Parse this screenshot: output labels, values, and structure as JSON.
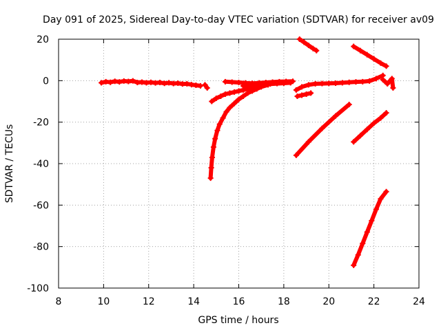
{
  "chart_data": {
    "type": "scatter",
    "title": "Day 091 of 2025, Sidereal Day-to-day VTEC variation (SDTVAR) for receiver av09",
    "xlabel": "GPS time / hours",
    "ylabel": "SDTVAR / TECUs",
    "xlim": [
      8,
      24
    ],
    "ylim": [
      -100,
      20
    ],
    "xticks": [
      "8",
      "10",
      "12",
      "14",
      "16",
      "18",
      "20",
      "22",
      "24"
    ],
    "yticks": [
      "20",
      "0",
      "-20",
      "-40",
      "-60",
      "-80",
      "-100"
    ],
    "grid": true,
    "marker": "plus",
    "color": "#ff0000",
    "series": [
      {
        "x": [
          9.9,
          10.1,
          10.3,
          10.5,
          10.7,
          10.9,
          11.1,
          11.3,
          11.5,
          11.7,
          11.9,
          12.1,
          12.3,
          12.5,
          12.7,
          12.9,
          13.1,
          13.3,
          13.5,
          13.7,
          13.9,
          14.1,
          14.3
        ],
        "y": [
          -1.0,
          -0.5,
          -0.8,
          -0.3,
          -0.6,
          -0.2,
          -0.4,
          -0.1,
          -0.9,
          -0.7,
          -1.0,
          -0.8,
          -1.1,
          -0.9,
          -1.3,
          -1.0,
          -1.4,
          -1.2,
          -1.6,
          -1.5,
          -1.9,
          -2.2,
          -2.5
        ]
      },
      {
        "x": [
          14.5,
          14.6
        ],
        "y": [
          -2.0,
          -3.5
        ]
      },
      {
        "x": [
          14.75,
          14.78,
          14.82,
          14.88,
          14.95,
          15.05,
          15.15,
          15.3,
          15.45,
          15.6,
          15.8,
          16.0,
          16.2,
          16.4,
          16.6,
          16.8,
          17.0,
          17.3
        ],
        "y": [
          -47,
          -42,
          -37,
          -32,
          -28,
          -24,
          -21,
          -18,
          -15,
          -13,
          -11,
          -9,
          -7.5,
          -6,
          -5,
          -4,
          -3,
          -2
        ]
      },
      {
        "x": [
          14.8,
          15.0,
          15.2,
          15.4,
          15.6,
          15.8,
          16.0,
          16.2,
          16.4,
          16.6,
          16.8,
          17.0,
          17.2
        ],
        "y": [
          -10,
          -8.5,
          -7.5,
          -6.5,
          -6.0,
          -5.5,
          -5.0,
          -4.5,
          -4.0,
          -3.5,
          -3.0,
          -2.5,
          -2.0
        ]
      },
      {
        "x": [
          15.4,
          15.7,
          16.0,
          16.3,
          16.6,
          16.9,
          17.2,
          17.5,
          17.8,
          18.1,
          18.4
        ],
        "y": [
          -0.5,
          -0.7,
          -0.9,
          -1.1,
          -1.3,
          -1.1,
          -0.9,
          -0.7,
          -0.5,
          -0.4,
          -0.3
        ]
      },
      {
        "x": [
          16.2,
          16.5,
          16.8,
          17.1,
          17.4,
          17.7,
          18.0,
          18.3
        ],
        "y": [
          -2.5,
          -2.2,
          -2.0,
          -1.8,
          -1.6,
          -1.4,
          -1.2,
          -1.0
        ]
      },
      {
        "x": [
          18.55,
          18.8,
          19.1,
          19.4,
          19.7,
          20.0,
          20.3,
          20.6,
          20.9,
          21.2,
          21.5,
          21.8,
          22.1,
          22.4
        ],
        "y": [
          -4.5,
          -3.0,
          -2.0,
          -1.5,
          -1.4,
          -1.3,
          -1.2,
          -1.0,
          -0.8,
          -0.6,
          -0.5,
          -0.2,
          1.0,
          2.5
        ]
      },
      {
        "x": [
          18.6,
          18.8,
          19.0,
          19.2
        ],
        "y": [
          -7.5,
          -7.0,
          -6.5,
          -6.0
        ]
      },
      {
        "x": [
          18.55,
          19.1,
          19.7,
          20.3,
          20.9
        ],
        "y": [
          -36,
          -29.5,
          -23,
          -17,
          -11.5
        ]
      },
      {
        "x": [
          18.7,
          18.9,
          19.1,
          19.3,
          19.45
        ],
        "y": [
          20,
          18.5,
          17,
          15.5,
          14.5
        ]
      },
      {
        "x": [
          21.1,
          21.4,
          21.7,
          22.0,
          22.3,
          22.55
        ],
        "y": [
          16.5,
          14.5,
          12.5,
          10.5,
          8.5,
          7.0
        ]
      },
      {
        "x": [
          21.1,
          21.4,
          21.7,
          22.0,
          22.3,
          22.55
        ],
        "y": [
          -29.5,
          -26.5,
          -23.5,
          -20.5,
          -18.0,
          -15.5
        ]
      },
      {
        "x": [
          21.1,
          21.3,
          21.5,
          21.7,
          21.9,
          22.1,
          22.3,
          22.55
        ],
        "y": [
          -89,
          -84,
          -78.5,
          -73,
          -67.5,
          -62,
          -57,
          -53.5
        ]
      },
      {
        "x": [
          22.4,
          22.6,
          22.8,
          22.85
        ],
        "y": [
          0.5,
          -1.5,
          1.0,
          -3.5
        ]
      }
    ]
  }
}
